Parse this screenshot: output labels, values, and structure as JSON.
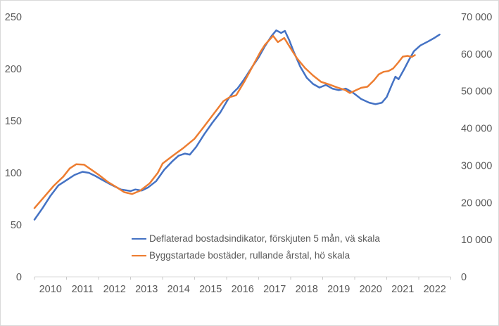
{
  "colors": {
    "background": "#ffffff",
    "frame_border": "#d9d9d9",
    "axis_line": "#d9d9d9",
    "tick_mark": "#c9c9c9",
    "axis_text": "#595959",
    "series_blue": "#4472c4",
    "series_orange": "#ed7d31"
  },
  "chart_data": {
    "type": "line",
    "title": "",
    "grid": false,
    "legend_position": "inside-bottom-center",
    "x_axis": {
      "tick_years": [
        2010,
        2011,
        2012,
        2013,
        2014,
        2015,
        2016,
        2017,
        2018,
        2019,
        2020,
        2021,
        2022,
        2023
      ],
      "labels": [
        "2010",
        "2011",
        "2012",
        "2013",
        "2014",
        "2015",
        "2016",
        "2017",
        "2018",
        "2019",
        "2020",
        "2021",
        "2022"
      ]
    },
    "y_axis_left": {
      "range": [
        0,
        250
      ],
      "ticks": [
        0,
        50,
        100,
        150,
        200,
        250
      ],
      "labels": [
        "0",
        "50",
        "100",
        "150",
        "200",
        "250"
      ]
    },
    "y_axis_right": {
      "range": [
        0,
        70000
      ],
      "ticks": [
        0,
        10000,
        20000,
        30000,
        40000,
        50000,
        60000,
        70000
      ],
      "labels": [
        "0",
        "10 000",
        "20 000",
        "30 000",
        "40 000",
        "50 000",
        "60 000",
        "70 000"
      ]
    },
    "series": [
      {
        "name": "Deflaterad bostadsindikator, förskjuten 5 mån, vä skala",
        "axis": "left",
        "color": "#4472c4",
        "points": [
          [
            0,
            55
          ],
          [
            0.25,
            66
          ],
          [
            0.5,
            78
          ],
          [
            0.75,
            88
          ],
          [
            1.0,
            93
          ],
          [
            1.25,
            98
          ],
          [
            1.5,
            101
          ],
          [
            1.7,
            100
          ],
          [
            1.9,
            97
          ],
          [
            2.1,
            93.5
          ],
          [
            2.4,
            88.5
          ],
          [
            2.7,
            84
          ],
          [
            3.0,
            82.5
          ],
          [
            3.15,
            84
          ],
          [
            3.35,
            83
          ],
          [
            3.55,
            86
          ],
          [
            3.8,
            92
          ],
          [
            4.05,
            103
          ],
          [
            4.3,
            111
          ],
          [
            4.5,
            116.5
          ],
          [
            4.7,
            118.5
          ],
          [
            4.85,
            117.5
          ],
          [
            5.05,
            125
          ],
          [
            5.3,
            137
          ],
          [
            5.55,
            148
          ],
          [
            5.8,
            158
          ],
          [
            6.05,
            171
          ],
          [
            6.2,
            177
          ],
          [
            6.35,
            181.5
          ],
          [
            6.55,
            190
          ],
          [
            6.8,
            202
          ],
          [
            7.0,
            211
          ],
          [
            7.2,
            222
          ],
          [
            7.4,
            231.5
          ],
          [
            7.55,
            237
          ],
          [
            7.7,
            234.5
          ],
          [
            7.82,
            236.5
          ],
          [
            7.95,
            228
          ],
          [
            8.1,
            216
          ],
          [
            8.3,
            202
          ],
          [
            8.5,
            191.5
          ],
          [
            8.7,
            185.5
          ],
          [
            8.9,
            182
          ],
          [
            9.1,
            184.5
          ],
          [
            9.3,
            181
          ],
          [
            9.5,
            179.5
          ],
          [
            9.72,
            181
          ],
          [
            9.95,
            177
          ],
          [
            10.2,
            171
          ],
          [
            10.45,
            167.5
          ],
          [
            10.65,
            166
          ],
          [
            10.85,
            167.5
          ],
          [
            11.0,
            173
          ],
          [
            11.15,
            184
          ],
          [
            11.27,
            192.5
          ],
          [
            11.37,
            190
          ],
          [
            11.55,
            200
          ],
          [
            11.7,
            209
          ],
          [
            11.85,
            217
          ],
          [
            12.05,
            222.5
          ],
          [
            12.3,
            226.5
          ],
          [
            12.5,
            230
          ],
          [
            12.65,
            233
          ]
        ]
      },
      {
        "name": "Byggstartade bostäder, rullande årstal, hö skala",
        "axis": "right",
        "color": "#ed7d31",
        "points": [
          [
            0,
            18500
          ],
          [
            0.3,
            21500
          ],
          [
            0.6,
            24500
          ],
          [
            0.9,
            27000
          ],
          [
            1.1,
            29200
          ],
          [
            1.3,
            30300
          ],
          [
            1.55,
            30200
          ],
          [
            1.75,
            29000
          ],
          [
            2.0,
            27500
          ],
          [
            2.3,
            25500
          ],
          [
            2.55,
            24200
          ],
          [
            2.8,
            22800
          ],
          [
            3.05,
            22300
          ],
          [
            3.3,
            23200
          ],
          [
            3.6,
            25200
          ],
          [
            3.85,
            28000
          ],
          [
            4.0,
            30500
          ],
          [
            4.35,
            32800
          ],
          [
            4.65,
            34700
          ],
          [
            5.0,
            37200
          ],
          [
            5.3,
            40500
          ],
          [
            5.65,
            44500
          ],
          [
            5.9,
            47300
          ],
          [
            6.1,
            48400
          ],
          [
            6.3,
            48900
          ],
          [
            6.55,
            52500
          ],
          [
            6.8,
            56500
          ],
          [
            7.05,
            60500
          ],
          [
            7.2,
            62500
          ],
          [
            7.45,
            64900
          ],
          [
            7.6,
            63200
          ],
          [
            7.8,
            64300
          ],
          [
            8.0,
            61500
          ],
          [
            8.2,
            58800
          ],
          [
            8.45,
            56200
          ],
          [
            8.7,
            54200
          ],
          [
            8.95,
            52500
          ],
          [
            9.2,
            51800
          ],
          [
            9.45,
            51000
          ],
          [
            9.7,
            50300
          ],
          [
            9.85,
            49500
          ],
          [
            10.0,
            50100
          ],
          [
            10.2,
            50900
          ],
          [
            10.4,
            51200
          ],
          [
            10.6,
            52900
          ],
          [
            10.75,
            54500
          ],
          [
            10.9,
            55200
          ],
          [
            11.05,
            55400
          ],
          [
            11.2,
            56100
          ],
          [
            11.35,
            57600
          ],
          [
            11.5,
            59300
          ],
          [
            11.65,
            59500
          ],
          [
            11.78,
            59200
          ],
          [
            11.88,
            59700
          ]
        ]
      }
    ]
  }
}
